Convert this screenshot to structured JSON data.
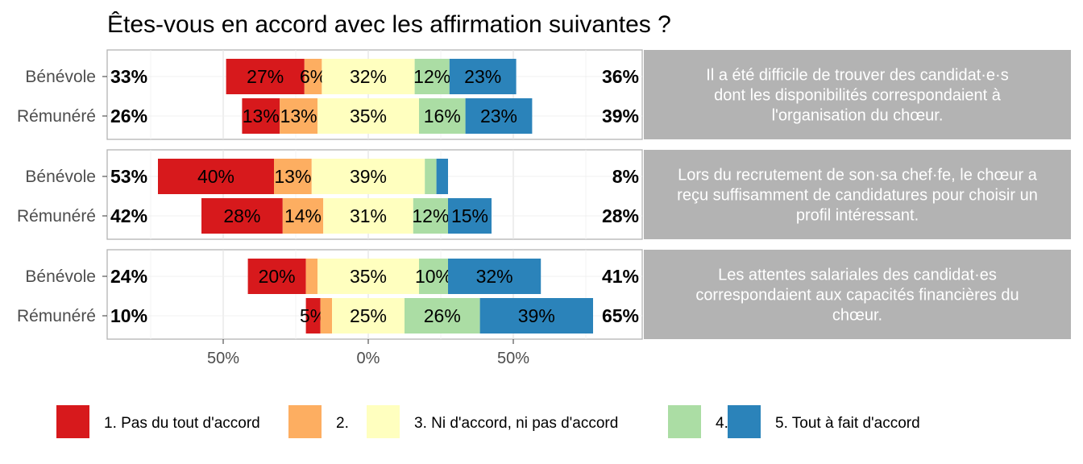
{
  "chart_data": {
    "type": "bar",
    "title": "Êtes-vous en accord avec les affirmation suivantes ?",
    "x_ticks": [
      "50%",
      "0%",
      "50%"
    ],
    "legend": {
      "position": "bottom",
      "entries": [
        {
          "label": "1. Pas du tout d'accord",
          "color": "#d7191c"
        },
        {
          "label": "2.",
          "color": "#fdae61"
        },
        {
          "label": "3. Ni d'accord, ni pas d'accord",
          "color": "#ffffbf"
        },
        {
          "label": "4.",
          "color": "#abdda4"
        },
        {
          "label": "5. Tout à fait d'accord",
          "color": "#2b83ba"
        }
      ]
    },
    "panels": [
      {
        "statement_lines": [
          "Il a été difficile de trouver des candidat·e·s",
          "dont les disponibilités correspondaient à",
          "l'organisation du chœur."
        ],
        "rows": [
          {
            "group": "Bénévole",
            "left_pct": "33%",
            "right_pct": "36%",
            "values": [
              27,
              6,
              32,
              12,
              23
            ],
            "labels": [
              "27%",
              "6%",
              "32%",
              "12%",
              "23%"
            ]
          },
          {
            "group": "Rémunéré",
            "left_pct": "26%",
            "right_pct": "39%",
            "values": [
              13,
              13,
              35,
              16,
              23
            ],
            "labels": [
              "13%",
              "13%",
              "35%",
              "16%",
              "23%"
            ]
          }
        ]
      },
      {
        "statement_lines": [
          "Lors du recrutement de son·sa chef·fe, le chœur a",
          "reçu suffisamment de candidatures pour choisir un",
          "profil intéressant."
        ],
        "rows": [
          {
            "group": "Bénévole",
            "left_pct": "53%",
            "right_pct": "8%",
            "values": [
              40,
              13,
              39,
              4,
              4
            ],
            "labels": [
              "40%",
              "13%",
              "39%",
              "",
              ""
            ]
          },
          {
            "group": "Rémunéré",
            "left_pct": "42%",
            "right_pct": "28%",
            "values": [
              28,
              14,
              31,
              12,
              15
            ],
            "labels": [
              "28%",
              "14%",
              "31%",
              "12%",
              "15%"
            ]
          }
        ]
      },
      {
        "statement_lines": [
          "Les attentes salariales des candidat·es",
          "correspondaient aux capacités financières du",
          "chœur."
        ],
        "rows": [
          {
            "group": "Bénévole",
            "left_pct": "24%",
            "right_pct": "41%",
            "values": [
              20,
              4,
              35,
              10,
              32
            ],
            "labels": [
              "20%",
              "",
              "35%",
              "10%",
              "32%"
            ]
          },
          {
            "group": "Rémunéré",
            "left_pct": "10%",
            "right_pct": "65%",
            "values": [
              5,
              4,
              25,
              26,
              39
            ],
            "labels": [
              "5%",
              "",
              "25%",
              "26%",
              "39%"
            ]
          }
        ]
      }
    ]
  }
}
